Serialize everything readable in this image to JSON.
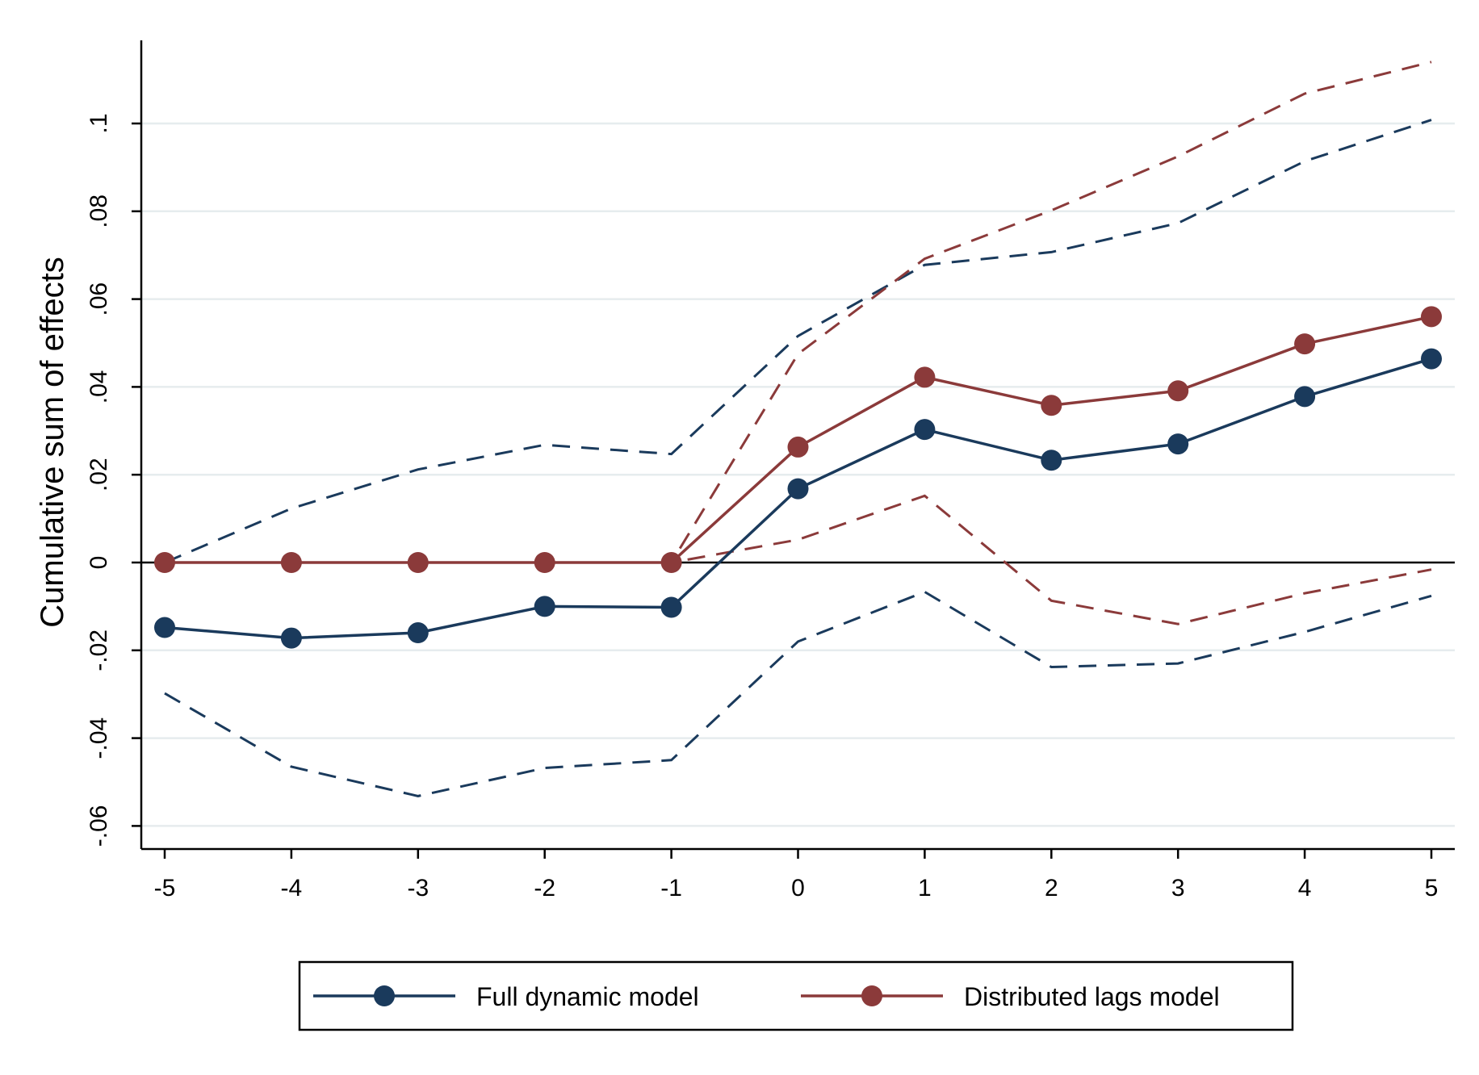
{
  "chart_data": {
    "type": "line",
    "title": "",
    "xlabel": "",
    "ylabel": "Cumulative sum of effects",
    "x": [
      -5,
      -4,
      -3,
      -2,
      -1,
      0,
      1,
      2,
      3,
      4,
      5
    ],
    "x_tick_labels": [
      "-5",
      "-4",
      "-3",
      "-2",
      "-1",
      "0",
      "1",
      "2",
      "3",
      "4",
      "5"
    ],
    "y_ticks": [
      -0.06,
      -0.04,
      -0.02,
      0,
      0.02,
      0.04,
      0.06,
      0.08,
      0.1
    ],
    "y_tick_labels": [
      "-.06",
      "-.04",
      "-.02",
      "0",
      ".02",
      ".04",
      ".06",
      ".08",
      ".1"
    ],
    "xlim": [
      -5.2,
      5.2
    ],
    "ylim": [
      -0.065,
      0.12
    ],
    "grid": "horizontal",
    "reference_line_y": 0,
    "legend": {
      "position": "bottom",
      "entries": [
        "Full dynamic model",
        "Distributed lags model"
      ]
    },
    "series": [
      {
        "name": "Full dynamic model",
        "color": "#1a3a5c",
        "values": [
          -0.0148,
          -0.0172,
          -0.016,
          -0.01,
          -0.0102,
          0.0168,
          0.0303,
          0.0233,
          0.027,
          0.0378,
          0.0464
        ],
        "ci_upper": [
          0.0,
          0.0123,
          0.0212,
          0.0268,
          0.0247,
          0.0516,
          0.0678,
          0.0707,
          0.0773,
          0.0914,
          0.1008
        ],
        "ci_lower": [
          -0.0298,
          -0.0465,
          -0.0532,
          -0.0468,
          -0.045,
          -0.018,
          -0.0067,
          -0.0238,
          -0.023,
          -0.0158,
          -0.0076
        ]
      },
      {
        "name": "Distributed lags model",
        "color": "#8b3a3a",
        "values": [
          0.0,
          0.0,
          0.0,
          0.0,
          0.0,
          0.0263,
          0.0422,
          0.0358,
          0.0391,
          0.0498,
          0.056
        ],
        "ci_upper": [
          0.0,
          0.0,
          0.0,
          0.0,
          0.0,
          0.0475,
          0.0692,
          0.0802,
          0.0925,
          0.1068,
          0.114
        ],
        "ci_lower": [
          0.0,
          0.0,
          0.0,
          0.0,
          0.0,
          0.0052,
          0.0152,
          -0.0087,
          -0.014,
          -0.007,
          -0.0016
        ]
      }
    ]
  }
}
